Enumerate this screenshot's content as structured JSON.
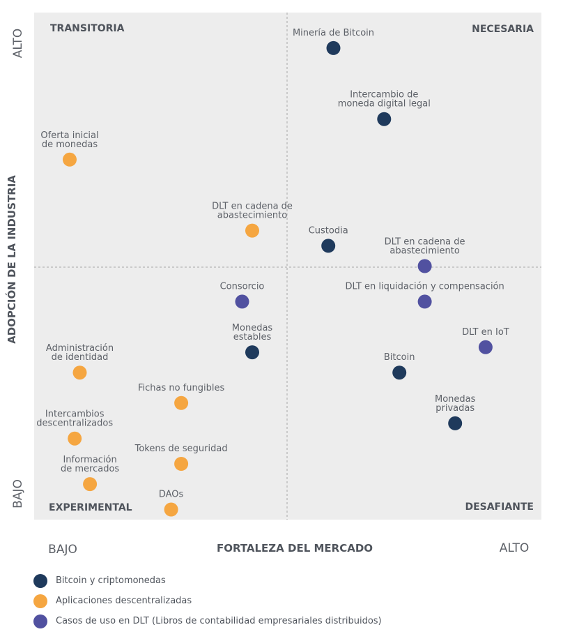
{
  "chart_data": {
    "type": "scatter",
    "xlabel": "FORTALEZA DEL MERCADO",
    "ylabel": "ADOPCIÓN DE LA INDUSTRIA",
    "x_low": "BAJO",
    "x_high": "ALTO",
    "y_low": "BAJO",
    "y_high": "ALTO",
    "xlim": [
      0,
      10
    ],
    "ylim": [
      0,
      10
    ],
    "grid": false,
    "quadrants": {
      "top_left": "TRANSITORIA",
      "top_right": "NECESARIA",
      "bottom_left": "EXPERIMENTAL",
      "bottom_right": "DESAFIANTE"
    },
    "legend_position": "bottom",
    "series": [
      {
        "name": "Bitcoin y criptomonedas",
        "color": "#1f3a5c",
        "points": [
          {
            "label": [
              "Minería de Bitcoin"
            ],
            "x": 5.9,
            "y": 9.3
          },
          {
            "label": [
              "Intercambio de",
              "moneda digital legal"
            ],
            "x": 6.9,
            "y": 7.9
          },
          {
            "label": [
              "Custodia"
            ],
            "x": 5.8,
            "y": 5.4
          },
          {
            "label": [
              "Monedas",
              "estables"
            ],
            "x": 4.3,
            "y": 3.3
          },
          {
            "label": [
              "Bitcoin"
            ],
            "x": 7.2,
            "y": 2.9
          },
          {
            "label": [
              "Monedas",
              "privadas"
            ],
            "x": 8.3,
            "y": 1.9
          }
        ]
      },
      {
        "name": "Aplicaciones descentralizadas",
        "color": "#f5a641",
        "points": [
          {
            "label": [
              "Oferta inicial",
              "de monedas"
            ],
            "x": 0.7,
            "y": 7.1
          },
          {
            "label": [
              "DLT en cadena de",
              "abastecimiento"
            ],
            "x": 4.3,
            "y": 5.7
          },
          {
            "label": [
              "Administración",
              "de identidad"
            ],
            "x": 0.9,
            "y": 2.9
          },
          {
            "label": [
              "Fichas no fungibles"
            ],
            "x": 2.9,
            "y": 2.3
          },
          {
            "label": [
              "Intercambios",
              "descentralizados"
            ],
            "x": 0.8,
            "y": 1.6
          },
          {
            "label": [
              "Tokens de seguridad"
            ],
            "x": 2.9,
            "y": 1.1
          },
          {
            "label": [
              "Información",
              "de mercados"
            ],
            "x": 1.1,
            "y": 0.7
          },
          {
            "label": [
              "DAOs"
            ],
            "x": 2.7,
            "y": 0.2
          }
        ]
      },
      {
        "name": "Casos de uso en DLT (Libros de contabilidad empresariales distribuidos)",
        "color": "#5151a0",
        "points": [
          {
            "label": [
              "DLT en cadena de",
              "abastecimiento"
            ],
            "x": 7.7,
            "y": 5.0
          },
          {
            "label": [
              "Consorcio"
            ],
            "x": 4.1,
            "y": 4.3
          },
          {
            "label": [
              "DLT en liquidación y compensación"
            ],
            "x": 7.7,
            "y": 4.3
          },
          {
            "label": [
              "DLT en IoT"
            ],
            "x": 8.9,
            "y": 3.4
          }
        ]
      }
    ]
  }
}
